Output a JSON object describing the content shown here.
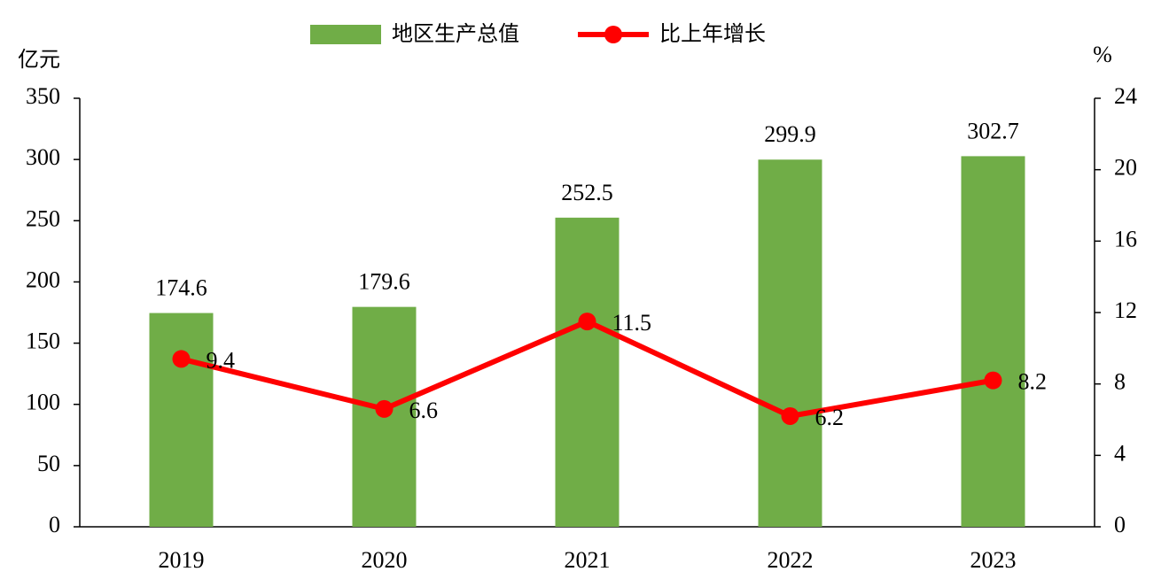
{
  "chart_data": {
    "type": "bar",
    "y_unit": "亿元",
    "y2_unit": "%",
    "categories": [
      "2019",
      "2020",
      "2021",
      "2022",
      "2023"
    ],
    "series": [
      {
        "name": "地区生产总值",
        "type": "bar",
        "color": "#70ad47",
        "values": [
          174.6,
          179.6,
          252.5,
          299.9,
          302.7
        ]
      },
      {
        "name": "比上年增长",
        "type": "line",
        "axis": "y2",
        "color": "#ff0000",
        "values": [
          9.4,
          6.6,
          11.5,
          6.2,
          8.2
        ]
      }
    ],
    "ylim": [
      0,
      350
    ],
    "yticks": [
      0,
      50,
      100,
      150,
      200,
      250,
      300,
      350
    ],
    "y2lim": [
      0,
      24
    ],
    "y2ticks": [
      0,
      4,
      8,
      12,
      16,
      20,
      24
    ],
    "grid": false
  }
}
